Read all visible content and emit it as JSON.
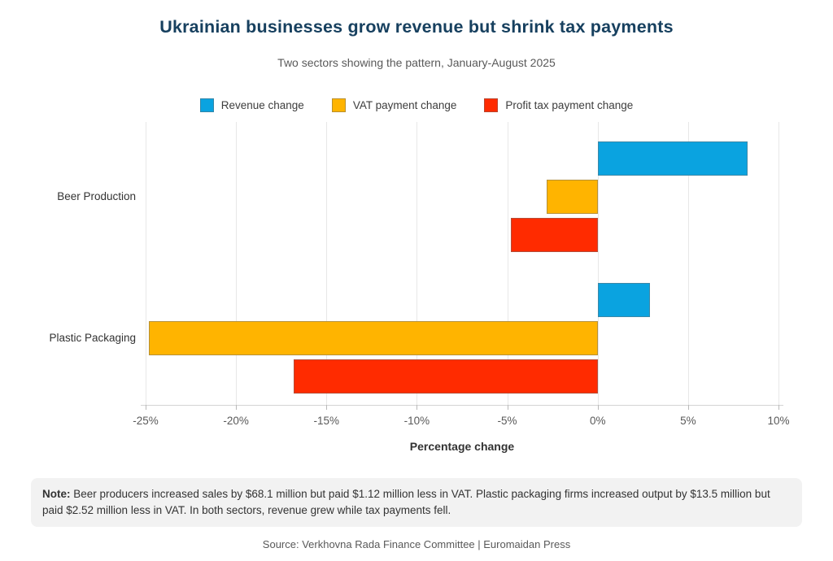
{
  "header": {
    "title": "Ukrainian businesses grow revenue but shrink tax payments",
    "subtitle": "Two sectors showing the pattern, January-August 2025"
  },
  "chart_data": {
    "type": "bar",
    "orientation": "horizontal",
    "title": "Ukrainian businesses grow revenue but shrink tax payments",
    "subtitle": "Two sectors showing the pattern, January-August 2025",
    "categories": [
      "Beer Production",
      "Plastic Packaging"
    ],
    "series": [
      {
        "name": "Revenue change",
        "color": "#0aa3e0",
        "values": [
          8.3,
          2.9
        ]
      },
      {
        "name": "VAT payment change",
        "color": "#ffb400",
        "values": [
          -2.8,
          -24.8
        ]
      },
      {
        "name": "Profit tax payment change",
        "color": "#ff2b00",
        "values": [
          -4.8,
          -16.8
        ]
      }
    ],
    "xlabel": "Percentage change",
    "ylabel": "",
    "xlim": [
      -25,
      10
    ],
    "ticks": [
      {
        "value": -25,
        "label": "-25%"
      },
      {
        "value": -20,
        "label": "-20%"
      },
      {
        "value": -15,
        "label": "-15%"
      },
      {
        "value": -10,
        "label": "-10%"
      },
      {
        "value": -5,
        "label": "-5%"
      },
      {
        "value": 0,
        "label": "0%"
      },
      {
        "value": 5,
        "label": "5%"
      },
      {
        "value": 10,
        "label": "10%"
      }
    ],
    "grid": true,
    "legend_position": "top"
  },
  "note": {
    "label": "Note:",
    "text": " Beer producers increased sales by $68.1 million but paid $1.12 million less in VAT. Plastic packaging firms increased output by $13.5 million but paid $2.52 million less in VAT. In both sectors, revenue grew while tax payments fell."
  },
  "source": "Source: Verkhovna Rada Finance Committee | Euromaidan Press",
  "colors": {
    "title": "#17405f",
    "subtitle": "#595959",
    "tick_labels": "#595959",
    "grid": "#e7e7e7",
    "note_background": "#f2f2f2"
  }
}
